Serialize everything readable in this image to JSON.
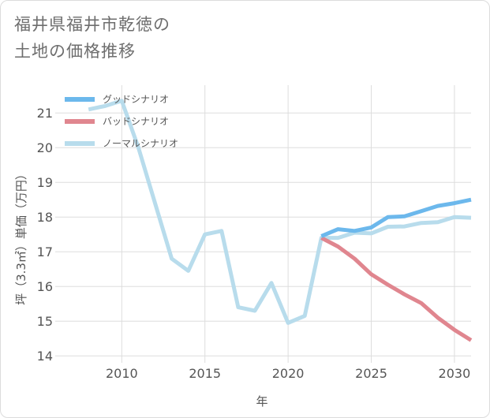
{
  "title_lines": [
    "福井県福井市乾徳の",
    "土地の価格推移"
  ],
  "chart_data": {
    "type": "line",
    "xlabel": "年",
    "ylabel": "坪（3.3㎡）単価（万円）",
    "xlim": [
      2006,
      2031
    ],
    "ylim": [
      13.8,
      21.8
    ],
    "xticks": [
      2010,
      2015,
      2020,
      2025,
      2030
    ],
    "yticks": [
      14,
      15,
      16,
      17,
      18,
      19,
      20,
      21
    ],
    "grid": true,
    "legend_position": "top-left",
    "series": [
      {
        "name": "グッドシナリオ",
        "color": "#6cb8ec",
        "x": [
          2022,
          2023,
          2024,
          2025,
          2026,
          2027,
          2028,
          2029,
          2030,
          2031
        ],
        "values": [
          17.45,
          17.65,
          17.6,
          17.7,
          18.0,
          18.02,
          18.17,
          18.32,
          18.4,
          18.5
        ]
      },
      {
        "name": "バッドシナリオ",
        "color": "#e0868f",
        "x": [
          2022,
          2023,
          2024,
          2025,
          2026,
          2027,
          2028,
          2029,
          2030,
          2031
        ],
        "values": [
          17.4,
          17.15,
          16.8,
          16.35,
          16.05,
          15.77,
          15.52,
          15.1,
          14.75,
          14.45
        ]
      },
      {
        "name": "ノーマルシナリオ",
        "color": "#b8dcec",
        "x": [
          2008,
          2009,
          2010,
          2011,
          2012,
          2013,
          2014,
          2015,
          2016,
          2017,
          2018,
          2019,
          2020,
          2021,
          2022,
          2023,
          2024,
          2025,
          2026,
          2027,
          2028,
          2029,
          2030,
          2031
        ],
        "values": [
          21.1,
          21.2,
          21.35,
          20.0,
          18.4,
          16.8,
          16.45,
          17.5,
          17.6,
          15.4,
          15.3,
          16.1,
          14.95,
          15.15,
          17.4,
          17.4,
          17.55,
          17.53,
          17.72,
          17.73,
          17.83,
          17.85,
          18.0,
          17.98
        ]
      }
    ]
  }
}
